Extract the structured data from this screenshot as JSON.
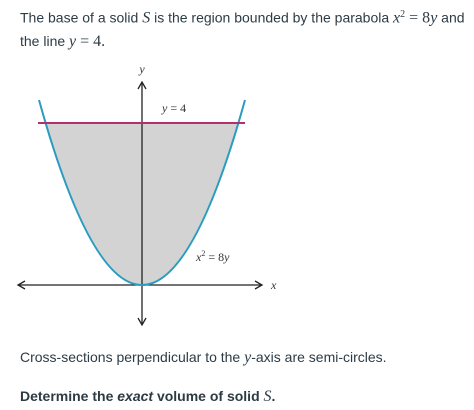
{
  "problem": {
    "intro": [
      "The base of a solid ",
      "S",
      " is the region bounded by the parabola ",
      "x",
      "2",
      " = 8",
      "y",
      " and",
      "the line ",
      "y",
      " = 4."
    ],
    "cross_sections": [
      "Cross-sections perpendicular to the ",
      "y",
      "-axis are semi-circles."
    ],
    "question": [
      "Determine the ",
      "exact",
      " volume of solid ",
      "S",
      "."
    ]
  },
  "diagram": {
    "y_axis_label": "y",
    "x_axis_label": "x",
    "line_label": [
      "y",
      " = 4"
    ],
    "curve_label": [
      "x",
      "2",
      " = 8",
      "y"
    ]
  }
}
